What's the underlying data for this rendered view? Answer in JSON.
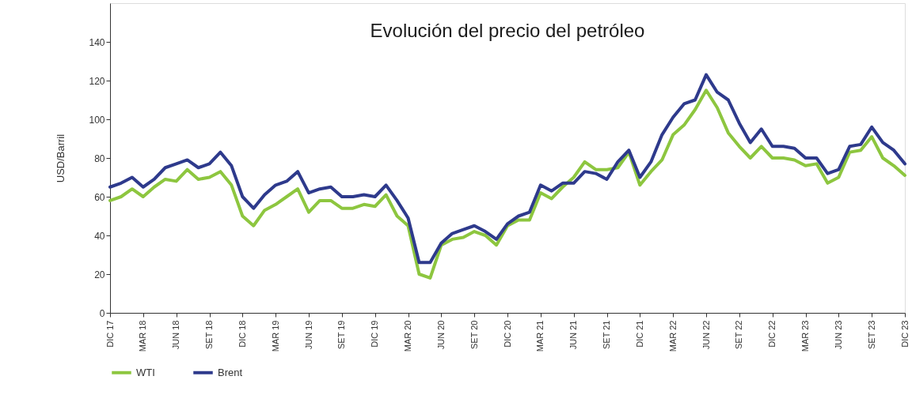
{
  "chart_data": {
    "type": "line",
    "title": "Evolución del precio del petróleo",
    "ylabel": "USD/Barril",
    "categories": [
      "DIC 17",
      null,
      null,
      "MAR 18",
      null,
      null,
      "JUN 18",
      null,
      null,
      "SET 18",
      null,
      null,
      "DIC 18",
      null,
      null,
      "MAR 19",
      null,
      null,
      "JUN 19",
      null,
      null,
      "SET 19",
      null,
      null,
      "DIC 19",
      null,
      null,
      "MAR 20",
      null,
      null,
      "JUN 20",
      null,
      null,
      "SET 20",
      null,
      null,
      "DIC 20",
      null,
      null,
      "MAR 21",
      null,
      null,
      "JUN 21",
      null,
      null,
      "SET 21",
      null,
      null,
      "DIC 21",
      null,
      null,
      "MAR 22",
      null,
      null,
      "JUN 22",
      null,
      null,
      "SET 22",
      null,
      null,
      "DIC 22",
      null,
      null,
      "MAR 23",
      null,
      null,
      "JUN 23",
      null,
      null,
      "SET 23",
      null,
      null,
      "DIC 23"
    ],
    "series": [
      {
        "name": "WTI",
        "color": "#8dc63f",
        "values": [
          58,
          60,
          64,
          60,
          65,
          69,
          68,
          74,
          69,
          70,
          73,
          66,
          50,
          45,
          53,
          56,
          60,
          64,
          52,
          58,
          58,
          54,
          54,
          56,
          55,
          61,
          50,
          45,
          20,
          18,
          35,
          38,
          39,
          42,
          40,
          35,
          45,
          48,
          48,
          62,
          59,
          65,
          70,
          78,
          74,
          74,
          75,
          83,
          66,
          73,
          79,
          92,
          97,
          105,
          115,
          106,
          93,
          86,
          80,
          86,
          80,
          80,
          79,
          76,
          77,
          67,
          70,
          83,
          84,
          91,
          80,
          76,
          71
        ]
      },
      {
        "name": "Brent",
        "color": "#2e3a8c",
        "values": [
          65,
          67,
          70,
          65,
          69,
          75,
          77,
          79,
          75,
          77,
          83,
          76,
          60,
          54,
          61,
          66,
          68,
          73,
          62,
          64,
          65,
          60,
          60,
          61,
          60,
          66,
          58,
          49,
          26,
          26,
          36,
          41,
          43,
          45,
          42,
          38,
          46,
          50,
          52,
          66,
          63,
          67,
          67,
          73,
          72,
          69,
          78,
          84,
          70,
          78,
          92,
          101,
          108,
          110,
          123,
          114,
          110,
          98,
          88,
          95,
          86,
          86,
          85,
          80,
          80,
          72,
          74,
          86,
          87,
          96,
          88,
          84,
          77
        ]
      }
    ],
    "ylim": [
      0,
      160
    ],
    "yticks": [
      0,
      20,
      40,
      60,
      80,
      100,
      120,
      140
    ],
    "grid": false,
    "legend": "bottom",
    "line_style": "solid",
    "marker": "none"
  }
}
